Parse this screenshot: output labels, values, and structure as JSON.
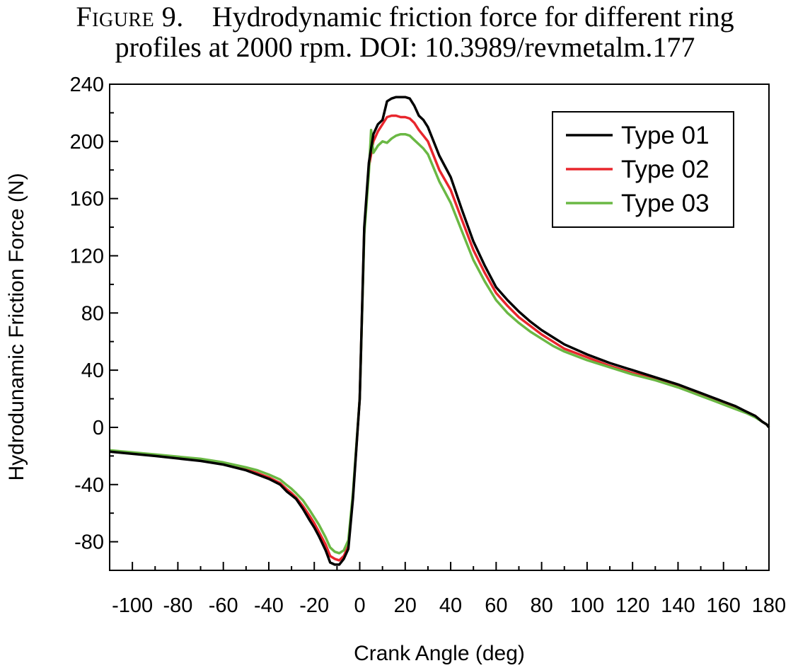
{
  "caption": {
    "label": "Figure 9.",
    "line1": "Hydrodynamic friction force for different ring",
    "line2": "profiles at 2000 rpm. DOI: 10.3989/revmetalm.177"
  },
  "chart_data": {
    "type": "line",
    "xlabel": "Crank Angle (deg)",
    "ylabel": "Hydrodunamic Friction Force (N)",
    "xlim": [
      -110,
      180
    ],
    "ylim": [
      -100,
      240
    ],
    "xticks": [
      -100,
      -80,
      -60,
      -40,
      -20,
      0,
      20,
      40,
      60,
      80,
      100,
      120,
      140,
      160,
      180
    ],
    "yticks": [
      -80,
      -40,
      0,
      40,
      80,
      120,
      160,
      200,
      240
    ],
    "legend_position": "top-right",
    "grid": false,
    "series": [
      {
        "name": "Type 01",
        "color": "#000000",
        "x": [
          -110,
          -90,
          -70,
          -60,
          -50,
          -45,
          -40,
          -35,
          -32,
          -30,
          -28,
          -25,
          -22,
          -20,
          -18,
          -15,
          -13,
          -11,
          -9,
          -7,
          -5,
          -3,
          0,
          2,
          4,
          6,
          8,
          10,
          12,
          14,
          16,
          18,
          20,
          22,
          24,
          26,
          28,
          30,
          35,
          40,
          45,
          50,
          55,
          60,
          65,
          70,
          75,
          80,
          85,
          90,
          100,
          110,
          120,
          130,
          140,
          145,
          150,
          155,
          160,
          165,
          170,
          174,
          177,
          179,
          180
        ],
        "y": [
          -17,
          -20,
          -23.5,
          -26,
          -30,
          -33,
          -36,
          -40,
          -45,
          -47.5,
          -50,
          -57,
          -65,
          -70,
          -76,
          -86,
          -94.5,
          -96,
          -96,
          -92,
          -85,
          -50,
          20,
          140,
          185,
          205,
          212,
          215,
          228,
          230,
          231,
          231,
          231,
          230,
          225,
          218,
          215,
          210,
          190,
          175,
          152,
          130,
          113,
          98,
          89,
          81,
          74,
          68,
          63,
          58,
          51,
          45,
          40,
          35,
          30,
          27,
          24,
          21,
          18,
          15,
          11,
          8,
          4,
          2,
          0
        ]
      },
      {
        "name": "Type 02",
        "color": "#e8262d",
        "x": [
          -110,
          -90,
          -70,
          -60,
          -50,
          -45,
          -40,
          -35,
          -32,
          -30,
          -28,
          -25,
          -22,
          -20,
          -18,
          -15,
          -13,
          -11,
          -9,
          -7,
          -5,
          -3,
          0,
          2,
          4,
          6,
          8,
          10,
          12,
          14,
          16,
          18,
          20,
          22,
          24,
          26,
          28,
          30,
          35,
          40,
          45,
          50,
          55,
          60,
          65,
          70,
          75,
          80,
          85,
          90,
          100,
          110,
          120,
          130,
          140,
          145,
          150,
          155,
          160,
          165,
          170,
          174,
          177,
          179,
          180
        ],
        "y": [
          -16.5,
          -19.5,
          -23,
          -25.5,
          -29.5,
          -32,
          -35,
          -39,
          -43.5,
          -46,
          -49,
          -55,
          -62,
          -67,
          -73,
          -82,
          -90,
          -92,
          -93,
          -90,
          -83,
          -48,
          20,
          138,
          182,
          200,
          207,
          212,
          217,
          218,
          218,
          217,
          217,
          216,
          213,
          208,
          204,
          200,
          180,
          166,
          145,
          124,
          108,
          94,
          85,
          77,
          71,
          65,
          60,
          55,
          49,
          43,
          38,
          34,
          29,
          26,
          23,
          20,
          17,
          14,
          11,
          8,
          4,
          2,
          0
        ]
      },
      {
        "name": "Type 03",
        "color": "#6ab844",
        "x": [
          -110,
          -90,
          -70,
          -60,
          -50,
          -45,
          -40,
          -35,
          -32,
          -30,
          -28,
          -25,
          -22,
          -20,
          -18,
          -15,
          -13,
          -11,
          -9,
          -7,
          -5,
          -3,
          0,
          2,
          4,
          5,
          6,
          8,
          10,
          12,
          14,
          16,
          18,
          20,
          22,
          24,
          26,
          28,
          30,
          35,
          40,
          45,
          50,
          55,
          60,
          65,
          70,
          75,
          80,
          85,
          90,
          100,
          110,
          120,
          130,
          140,
          145,
          150,
          155,
          160,
          165,
          170,
          174,
          177,
          179,
          180
        ],
        "y": [
          -16,
          -19,
          -22,
          -24.5,
          -28,
          -30,
          -33,
          -36.5,
          -40.5,
          -43,
          -46,
          -51,
          -58,
          -63,
          -68,
          -77,
          -84,
          -87,
          -88,
          -86,
          -79,
          -46,
          20,
          135,
          178,
          208,
          192,
          197,
          200,
          199,
          202,
          204,
          205,
          205,
          204,
          201,
          198,
          195,
          191,
          172,
          157,
          137,
          117,
          102,
          89,
          80,
          73,
          67,
          62,
          57,
          53,
          47,
          42,
          37,
          33,
          28,
          25,
          22,
          19,
          16,
          13,
          10,
          7,
          4,
          2,
          0
        ]
      }
    ]
  }
}
